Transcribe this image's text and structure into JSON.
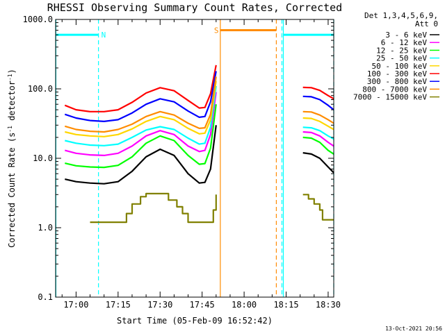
{
  "chart_data": {
    "type": "line",
    "title": "RHESSI Observing Summary Count Rates, Corrected",
    "xlabel": "Start Time (05-Feb-09 16:52:42)",
    "ylabel_main": "Corrected Count Rate (s",
    "ylabel_sup1": "-1",
    "ylabel_mid": " detector",
    "ylabel_sup2": "-1",
    "ylabel_end": ")",
    "y_scale": "log",
    "ylim": [
      0.1,
      1000
    ],
    "xlim": [
      "16:52:42",
      "18:32:00"
    ],
    "x_ticks": [
      "17:00",
      "17:15",
      "17:30",
      "17:45",
      "18:00",
      "18:15",
      "18:30"
    ],
    "x_tick_minutes": [
      1020,
      1035,
      1050,
      1065,
      1080,
      1095,
      1110
    ],
    "y_ticks": [
      "1000.0",
      "100.0",
      "10.0",
      "1.0",
      "0.1"
    ],
    "y_tick_values": [
      1000,
      100,
      10,
      1,
      0.1
    ],
    "legend_header": [
      "Det 1,3,4,5,6,9,",
      "Att 0"
    ],
    "legend_position": "top-right, outside plot",
    "series": [
      {
        "name": "3 - 6 keV",
        "color": "#000000",
        "x": [
          1016,
          1020,
          1025,
          1030,
          1035,
          1040,
          1045,
          1050,
          1055,
          1060,
          1064,
          1066,
          1068,
          1070
        ],
        "y": [
          5,
          4.6,
          4.4,
          4.3,
          4.6,
          6.5,
          10.5,
          13.5,
          11,
          6,
          4.4,
          4.5,
          7,
          30
        ]
      },
      {
        "name": "3 - 6 keV",
        "color": "#000000",
        "x": [
          1101,
          1104,
          1107,
          1110,
          1112
        ],
        "y": [
          12,
          11.5,
          10,
          7.5,
          6.2
        ]
      },
      {
        "name": "6 - 12 keV",
        "color": "#ff00ff",
        "x": [
          1016,
          1020,
          1025,
          1030,
          1035,
          1040,
          1045,
          1050,
          1055,
          1060,
          1064,
          1066,
          1068,
          1070
        ],
        "y": [
          13,
          11.8,
          11.2,
          11,
          11.8,
          15,
          21,
          25,
          22,
          15,
          12.5,
          13,
          22,
          90
        ]
      },
      {
        "name": "6 - 12 keV",
        "color": "#ff00ff",
        "x": [
          1101,
          1104,
          1107,
          1110,
          1112
        ],
        "y": [
          24,
          23.5,
          21,
          17,
          15
        ]
      },
      {
        "name": "12 - 25 keV",
        "color": "#00ff00",
        "x": [
          1016,
          1020,
          1025,
          1030,
          1035,
          1040,
          1045,
          1050,
          1055,
          1060,
          1064,
          1066,
          1068,
          1070
        ],
        "y": [
          8.5,
          7.8,
          7.5,
          7.4,
          7.9,
          10.5,
          16.5,
          21,
          18,
          11,
          8.2,
          8.4,
          14,
          60
        ]
      },
      {
        "name": "12 - 25 keV",
        "color": "#00ff00",
        "x": [
          1101,
          1104,
          1107,
          1110,
          1112
        ],
        "y": [
          20,
          19.5,
          17,
          13,
          11.5
        ]
      },
      {
        "name": "25 - 50 keV",
        "color": "#00ffff",
        "x": [
          1016,
          1020,
          1025,
          1030,
          1035,
          1040,
          1045,
          1050,
          1055,
          1060,
          1064,
          1066,
          1068,
          1070
        ],
        "y": [
          18,
          16.5,
          15.5,
          15.2,
          16,
          20,
          25.5,
          28.5,
          26,
          19.5,
          16,
          16.5,
          28,
          110
        ]
      },
      {
        "name": "25 - 50 keV",
        "color": "#00ffff",
        "x": [
          1101,
          1104,
          1107,
          1110,
          1112
        ],
        "y": [
          28,
          27.5,
          25,
          21,
          19
        ]
      },
      {
        "name": "50 - 100 keV",
        "color": "#ffd700",
        "x": [
          1016,
          1020,
          1025,
          1030,
          1035,
          1040,
          1045,
          1050,
          1055,
          1060,
          1064,
          1066,
          1068,
          1070
        ],
        "y": [
          24,
          22,
          21,
          20.5,
          22,
          26.5,
          34,
          40,
          36,
          27,
          22.5,
          23,
          36,
          130
        ]
      },
      {
        "name": "50 - 100 keV",
        "color": "#ffd700",
        "x": [
          1101,
          1104,
          1107,
          1110,
          1112
        ],
        "y": [
          38,
          37.5,
          34,
          29,
          26
        ]
      },
      {
        "name": "100 - 300 keV",
        "color": "#ff0000",
        "x": [
          1016,
          1020,
          1025,
          1030,
          1035,
          1040,
          1045,
          1050,
          1055,
          1060,
          1064,
          1066,
          1068,
          1070
        ],
        "y": [
          58,
          50,
          47,
          47,
          50,
          64,
          87,
          104,
          94,
          68,
          53,
          54,
          85,
          220
        ]
      },
      {
        "name": "100 - 300 keV",
        "color": "#ff0000",
        "x": [
          1101,
          1104,
          1107,
          1110,
          1112
        ],
        "y": [
          105,
          104,
          95,
          80,
          72
        ]
      },
      {
        "name": "300 - 800 keV",
        "color": "#0000ff",
        "x": [
          1016,
          1020,
          1025,
          1030,
          1035,
          1040,
          1045,
          1050,
          1055,
          1060,
          1064,
          1066,
          1068,
          1070
        ],
        "y": [
          43,
          38,
          35,
          34,
          36,
          45,
          60,
          72,
          65,
          48,
          39,
          40,
          65,
          180
        ]
      },
      {
        "name": "300 - 800 keV",
        "color": "#0000ff",
        "x": [
          1101,
          1104,
          1107,
          1110,
          1112
        ],
        "y": [
          78,
          77,
          70,
          58,
          50
        ]
      },
      {
        "name": "800 - 7000 keV",
        "color": "#ff8c00",
        "x": [
          1016,
          1020,
          1025,
          1030,
          1035,
          1040,
          1045,
          1050,
          1055,
          1060,
          1064,
          1066,
          1068,
          1070
        ],
        "y": [
          29,
          26,
          24.5,
          24,
          26,
          31,
          40,
          47,
          42,
          32,
          27,
          27.5,
          43,
          150
        ]
      },
      {
        "name": "800 - 7000 keV",
        "color": "#ff8c00",
        "x": [
          1101,
          1104,
          1107,
          1110,
          1112
        ],
        "y": [
          47,
          46.5,
          42,
          36,
          32
        ]
      },
      {
        "name": "7000 - 15000 keV",
        "color": "#808000",
        "style": "steps",
        "x": [
          1025,
          1030,
          1036,
          1038,
          1040,
          1043,
          1045,
          1047,
          1050,
          1053,
          1056,
          1058,
          1060,
          1062,
          1064,
          1066,
          1069,
          1070
        ],
        "y": [
          1.2,
          1.2,
          1.2,
          1.6,
          2.2,
          2.8,
          3.1,
          3.1,
          3.1,
          2.5,
          2.0,
          1.6,
          1.2,
          1.2,
          1.2,
          1.2,
          1.8,
          3.0
        ]
      },
      {
        "name": "7000 - 15000 keV",
        "color": "#808000",
        "style": "steps",
        "x": [
          1101,
          1103,
          1105,
          1107,
          1108,
          1110,
          1112
        ],
        "y": [
          3.0,
          2.6,
          2.2,
          1.8,
          1.3,
          1.3,
          1.3
        ]
      }
    ],
    "legend": [
      {
        "label": "3 - 6 keV",
        "color": "#000000"
      },
      {
        "label": "6 - 12 keV",
        "color": "#ff00ff"
      },
      {
        "label": "12 - 25 keV",
        "color": "#00ff00"
      },
      {
        "label": "25 - 50 keV",
        "color": "#00ffff"
      },
      {
        "label": "50 - 100 keV",
        "color": "#ffd700"
      },
      {
        "label": "100 - 300 keV",
        "color": "#ff0000"
      },
      {
        "label": "300 - 800 keV",
        "color": "#0000ff"
      },
      {
        "label": "800 - 7000 keV",
        "color": "#ff8c00"
      },
      {
        "label": "7000 - 15000 keV",
        "color": "#808000"
      }
    ],
    "annotations": [
      {
        "kind": "flag-bar",
        "label": "N",
        "color": "#00ffff",
        "x_start": 1012.7,
        "x_end": 1028,
        "y": 600
      },
      {
        "kind": "flag-bar",
        "label": "S",
        "color": "#ff8c00",
        "x_start": 1071.5,
        "x_end": 1091.5,
        "y": 700
      },
      {
        "kind": "flag-bar",
        "label": "",
        "color": "#00ffff",
        "x_start": 1094,
        "x_end": 1112,
        "y": 600
      }
    ],
    "vertical_lines": [
      {
        "x": 1012.8,
        "color": "#00ffff",
        "dashed": false
      },
      {
        "x": 1028,
        "color": "#00ffff",
        "dashed": true
      },
      {
        "x": 1071.5,
        "color": "#ff8c00",
        "dashed": false
      },
      {
        "x": 1091.5,
        "color": "#ff8c00",
        "dashed": true
      },
      {
        "x": 1093.5,
        "color": "#00ffff",
        "dashed": true
      },
      {
        "x": 1094,
        "color": "#00ffff",
        "dashed": false
      },
      {
        "x": 1112,
        "color": "#00ffff",
        "dashed": true
      }
    ],
    "timestamp": "13-Oct-2021 20:56",
    "grid": false
  }
}
